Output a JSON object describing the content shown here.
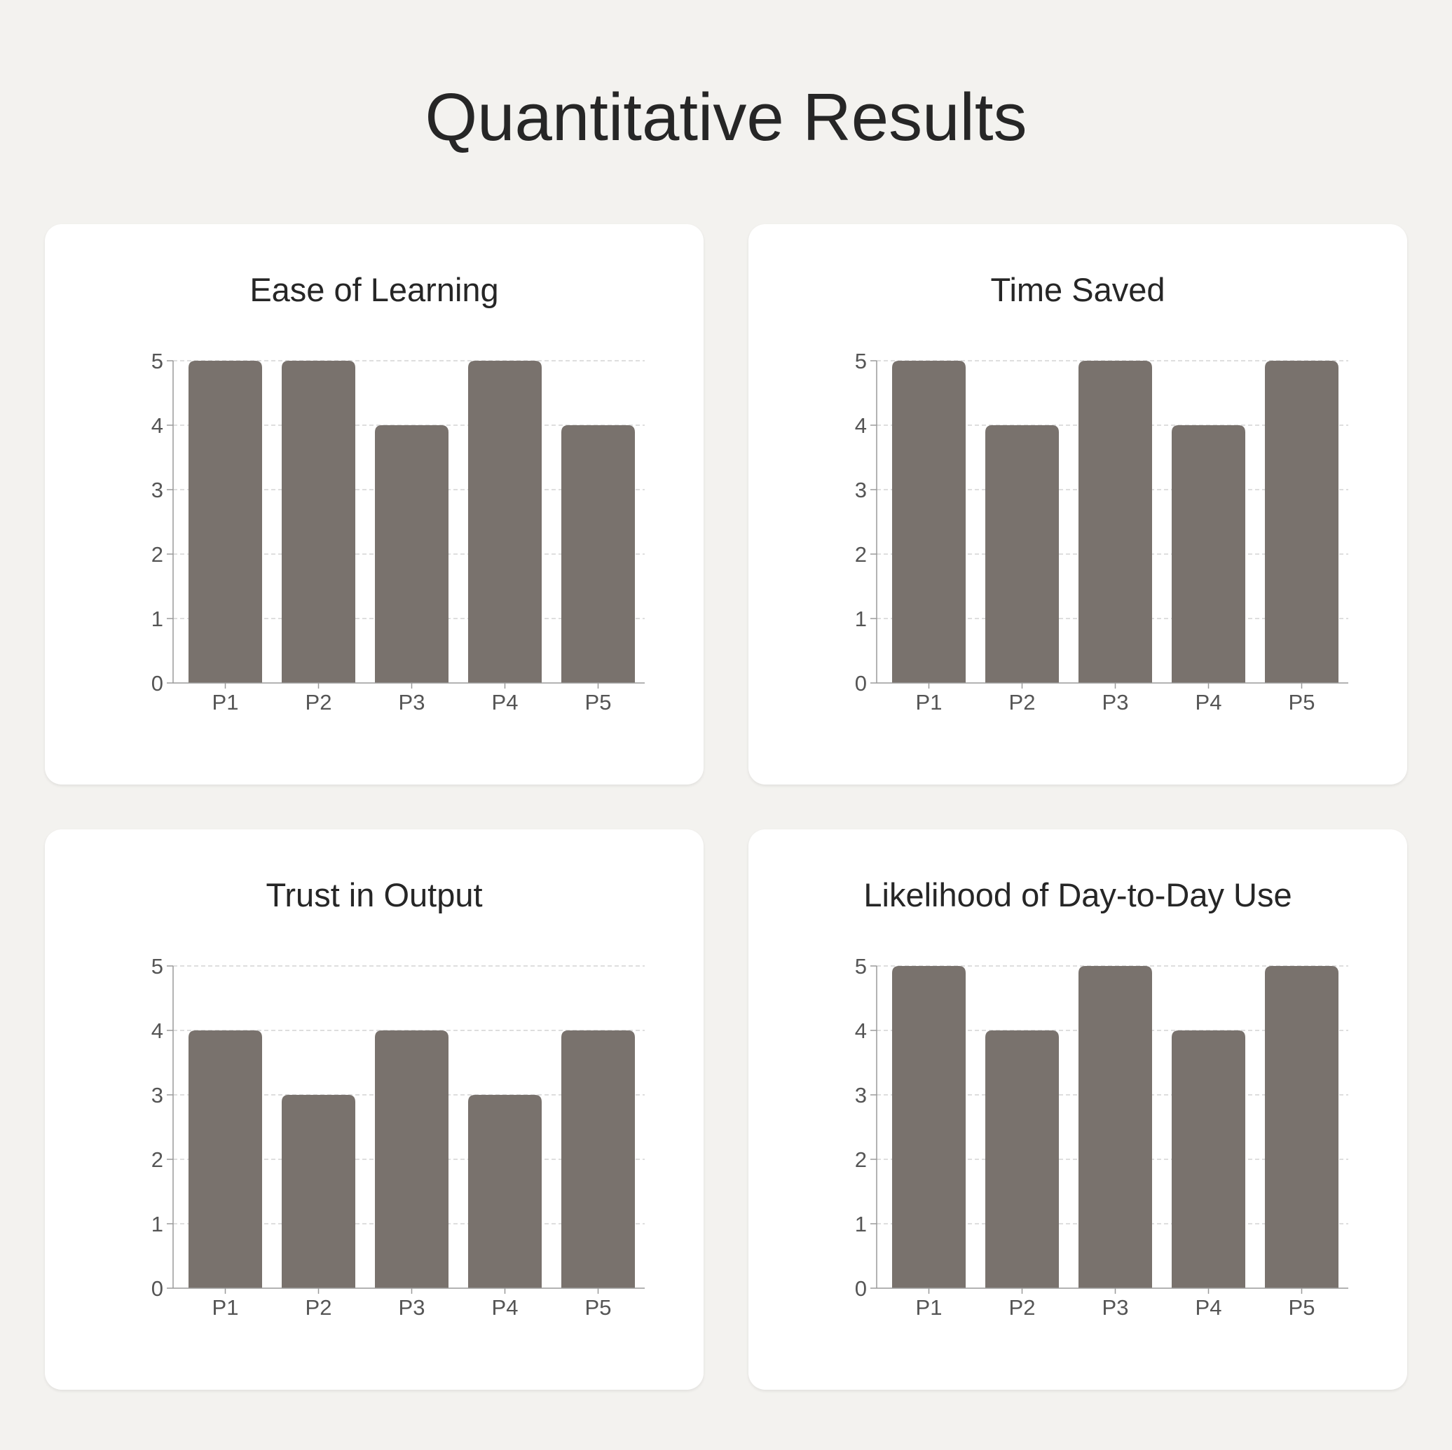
{
  "page": {
    "title": "Quantitative Results"
  },
  "colors": {
    "background": "#f3f2ef",
    "card": "#ffffff",
    "bar": "#79726d",
    "grid": "#d4d4d4",
    "axis": "#9a9a9a",
    "text": "#262626"
  },
  "chart_data": [
    {
      "type": "bar",
      "title": "Ease of Learning",
      "categories": [
        "P1",
        "P2",
        "P3",
        "P4",
        "P5"
      ],
      "values": [
        5,
        5,
        4,
        5,
        4
      ],
      "yticks": [
        "0",
        "1",
        "2",
        "3",
        "4",
        "5"
      ],
      "ylim": [
        0,
        5
      ],
      "grid": true,
      "xlabel": "",
      "ylabel": ""
    },
    {
      "type": "bar",
      "title": "Time Saved",
      "categories": [
        "P1",
        "P2",
        "P3",
        "P4",
        "P5"
      ],
      "values": [
        5,
        4,
        5,
        4,
        5
      ],
      "yticks": [
        "0",
        "1",
        "2",
        "3",
        "4",
        "5"
      ],
      "ylim": [
        0,
        5
      ],
      "grid": true,
      "xlabel": "",
      "ylabel": ""
    },
    {
      "type": "bar",
      "title": "Trust in Output",
      "categories": [
        "P1",
        "P2",
        "P3",
        "P4",
        "P5"
      ],
      "values": [
        4,
        3,
        4,
        3,
        4
      ],
      "yticks": [
        "0",
        "1",
        "2",
        "3",
        "4",
        "5"
      ],
      "ylim": [
        0,
        5
      ],
      "grid": true,
      "xlabel": "",
      "ylabel": ""
    },
    {
      "type": "bar",
      "title": "Likelihood of Day-to-Day Use",
      "categories": [
        "P1",
        "P2",
        "P3",
        "P4",
        "P5"
      ],
      "values": [
        5,
        4,
        5,
        4,
        5
      ],
      "yticks": [
        "0",
        "1",
        "2",
        "3",
        "4",
        "5"
      ],
      "ylim": [
        0,
        5
      ],
      "grid": true,
      "xlabel": "",
      "ylabel": ""
    }
  ]
}
